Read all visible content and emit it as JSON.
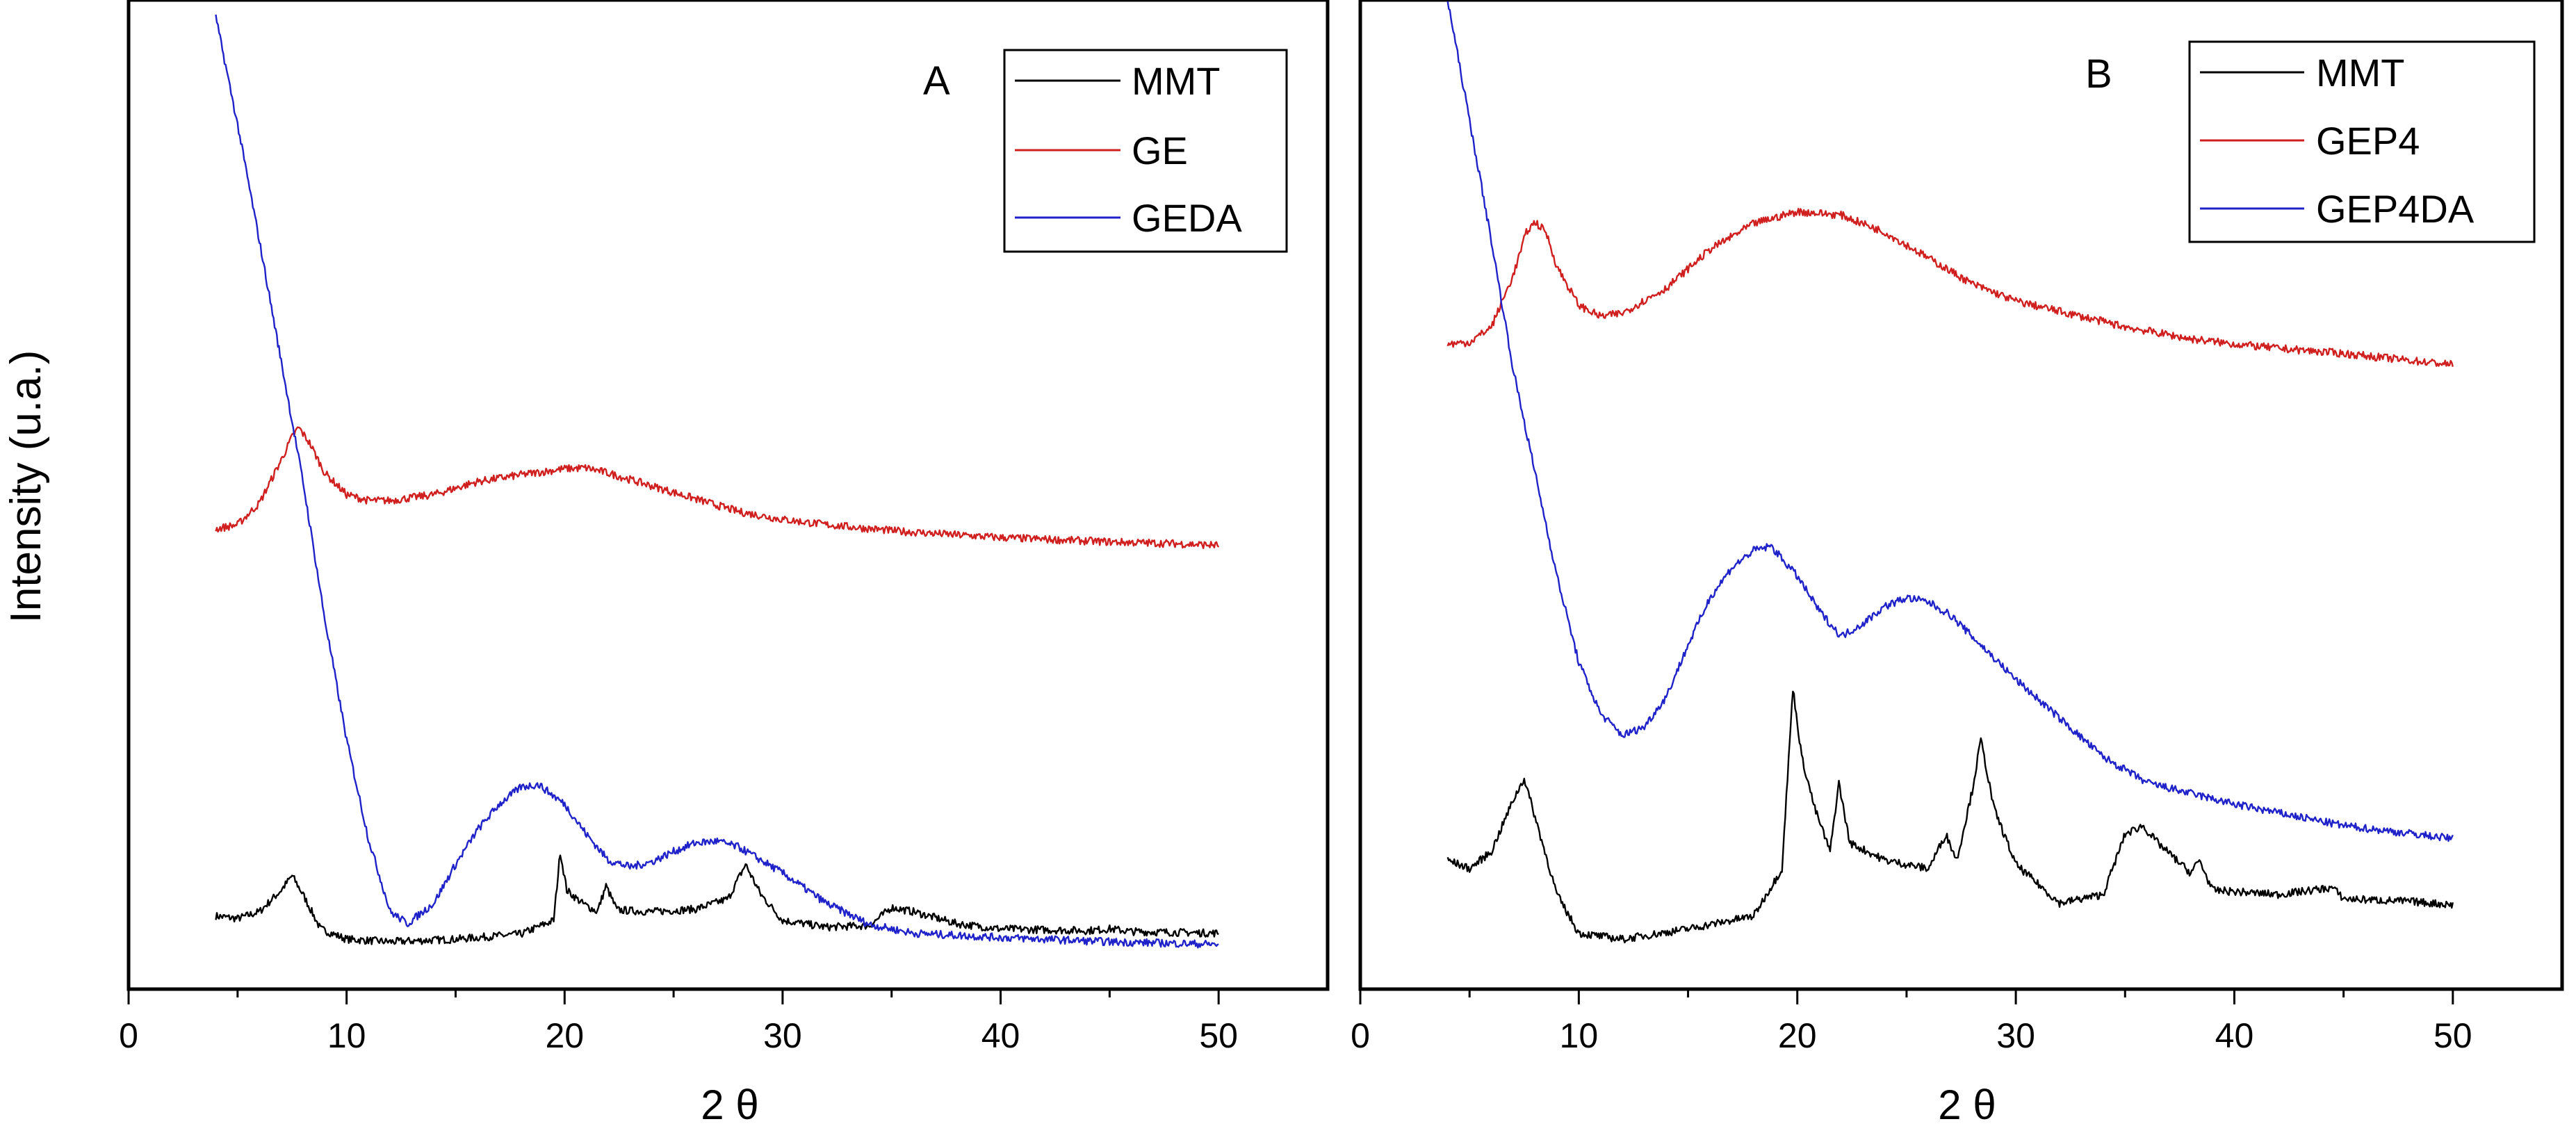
{
  "chart_data": [
    {
      "id": "A",
      "type": "line",
      "panel_label": "A",
      "xlabel": "2 θ",
      "ylabel": "Intensity (u.a.)",
      "xlim": [
        0,
        55
      ],
      "ylim": [
        -5,
        110
      ],
      "x_ticks": [
        0,
        10,
        20,
        30,
        40,
        50
      ],
      "x_tick_labels": [
        "0",
        "10",
        "20",
        "30",
        "40",
        "50"
      ],
      "legend": {
        "placement": "top-right"
      },
      "series": [
        {
          "name": "MMT",
          "color": "#000000",
          "x": [
            4,
            5,
            6,
            7,
            7.5,
            8,
            8.8,
            10,
            12,
            15,
            18,
            19.5,
            19.8,
            20.1,
            20.8,
            21.5,
            21.9,
            22.4,
            24,
            26,
            27.5,
            28.3,
            29,
            30,
            32,
            34,
            35,
            36,
            38,
            40,
            42,
            44,
            45,
            46,
            48,
            50
          ],
          "y": [
            3.5,
            3.2,
            4.0,
            6.5,
            8.2,
            6.0,
            2.0,
            0.8,
            0.5,
            0.8,
            1.4,
            3.0,
            11.0,
            6.5,
            5.0,
            4.0,
            7.0,
            4.2,
            4.0,
            4.3,
            5.5,
            9.5,
            6.0,
            3.0,
            2.2,
            2.4,
            4.5,
            4.0,
            2.6,
            2.0,
            1.9,
            1.8,
            2.0,
            1.7,
            1.6,
            1.5
          ]
        },
        {
          "name": "GE",
          "color": "#d01f1f",
          "x": [
            4,
            5,
            6,
            7,
            7.5,
            7.8,
            8.3,
            9,
            10,
            11,
            12,
            14,
            16,
            18,
            20,
            21,
            22,
            24,
            26,
            28,
            30,
            32,
            35,
            38,
            40,
            42,
            45,
            48,
            50
          ],
          "y": [
            48.5,
            49.0,
            51.5,
            56.5,
            59.2,
            60.3,
            58.5,
            55.0,
            52.5,
            51.8,
            51.8,
            52.5,
            54.0,
            54.8,
            55.5,
            55.6,
            55.0,
            53.5,
            52.0,
            50.5,
            49.6,
            49.0,
            48.3,
            47.8,
            47.5,
            47.3,
            47.0,
            46.8,
            46.6
          ]
        },
        {
          "name": "GEDA",
          "color": "#1f22c8",
          "x": [
            4,
            5,
            6,
            7,
            8,
            9,
            10,
            11,
            12,
            12.8,
            14,
            15,
            16,
            17,
            18,
            18.8,
            20,
            21,
            22,
            23,
            24,
            25,
            26,
            27,
            28,
            30,
            32,
            34,
            36,
            40,
            45,
            50
          ],
          "y": [
            108.0,
            95.5,
            82.0,
            68.0,
            54.0,
            38.0,
            24.0,
            12.5,
            4.0,
            2.6,
            5.0,
            9.5,
            13.5,
            16.5,
            18.5,
            18.8,
            16.5,
            13.0,
            10.0,
            9.2,
            9.8,
            11.0,
            12.0,
            12.2,
            11.5,
            8.5,
            5.0,
            2.5,
            1.5,
            1.0,
            0.5,
            0.2
          ]
        }
      ]
    },
    {
      "id": "B",
      "type": "line",
      "panel_label": "B",
      "xlabel": "2 θ",
      "ylabel": "",
      "xlim": [
        0,
        55
      ],
      "ylim": [
        -5,
        110
      ],
      "x_ticks": [
        0,
        10,
        20,
        30,
        40,
        50
      ],
      "x_tick_labels": [
        "0",
        "10",
        "20",
        "30",
        "40",
        "50"
      ],
      "legend": {
        "placement": "top-right"
      },
      "series": [
        {
          "name": "MMT",
          "color": "#000000",
          "x": [
            4,
            5,
            6,
            7,
            7.5,
            8,
            9,
            10,
            12,
            15,
            18,
            19.3,
            19.8,
            20.2,
            20.8,
            21.5,
            21.9,
            22.4,
            24,
            26,
            26.8,
            27.3,
            28,
            28.4,
            29,
            30,
            32,
            34,
            35,
            35.8,
            36.5,
            38,
            38.4,
            39,
            42,
            44.5,
            45,
            48,
            50
          ],
          "y": [
            10.0,
            9.0,
            11.0,
            17.0,
            19.5,
            15.0,
            6.0,
            1.5,
            0.8,
            2.0,
            3.5,
            9.0,
            30.0,
            22.0,
            16.0,
            11.0,
            19.0,
            12.0,
            10.0,
            9.0,
            13.0,
            10.0,
            18.0,
            24.0,
            16.0,
            9.5,
            5.0,
            6.0,
            13.0,
            14.0,
            12.0,
            8.5,
            10.0,
            6.5,
            6.0,
            6.8,
            5.5,
            5.2,
            4.8
          ]
        },
        {
          "name": "GEP4",
          "color": "#d01f1f",
          "x": [
            4,
            5,
            6,
            7,
            7.6,
            8,
            8.5,
            9,
            10,
            11,
            12,
            14,
            16,
            18,
            20,
            22,
            24,
            26,
            28,
            30,
            32,
            35,
            38,
            40,
            42,
            45,
            48,
            50
          ],
          "y": [
            70.0,
            70.2,
            72.0,
            78.0,
            83.0,
            84.2,
            83.0,
            79.0,
            74.5,
            73.2,
            73.6,
            76.5,
            81.0,
            84.0,
            85.4,
            85.0,
            83.0,
            80.0,
            77.0,
            75.0,
            73.8,
            72.0,
            70.6,
            70.0,
            69.5,
            68.9,
            68.1,
            67.6
          ]
        },
        {
          "name": "GEP4DA",
          "color": "#1f22c8",
          "x": [
            4,
            5,
            6,
            7,
            8,
            9,
            10,
            11,
            12,
            13,
            14,
            15,
            16,
            17,
            18,
            18.8,
            20,
            21,
            22,
            23,
            24,
            25,
            26,
            27,
            28,
            30,
            32,
            34,
            36,
            40,
            45,
            50
          ],
          "y": [
            110.0,
            96.0,
            82.0,
            67.0,
            55.0,
            43.0,
            33.0,
            27.0,
            24.5,
            25.5,
            29.0,
            35.0,
            40.5,
            44.0,
            46.0,
            46.5,
            43.0,
            39.0,
            36.0,
            37.5,
            39.5,
            40.5,
            40.0,
            38.5,
            36.0,
            31.0,
            26.5,
            22.0,
            19.0,
            16.5,
            14.0,
            12.5
          ]
        }
      ]
    }
  ]
}
